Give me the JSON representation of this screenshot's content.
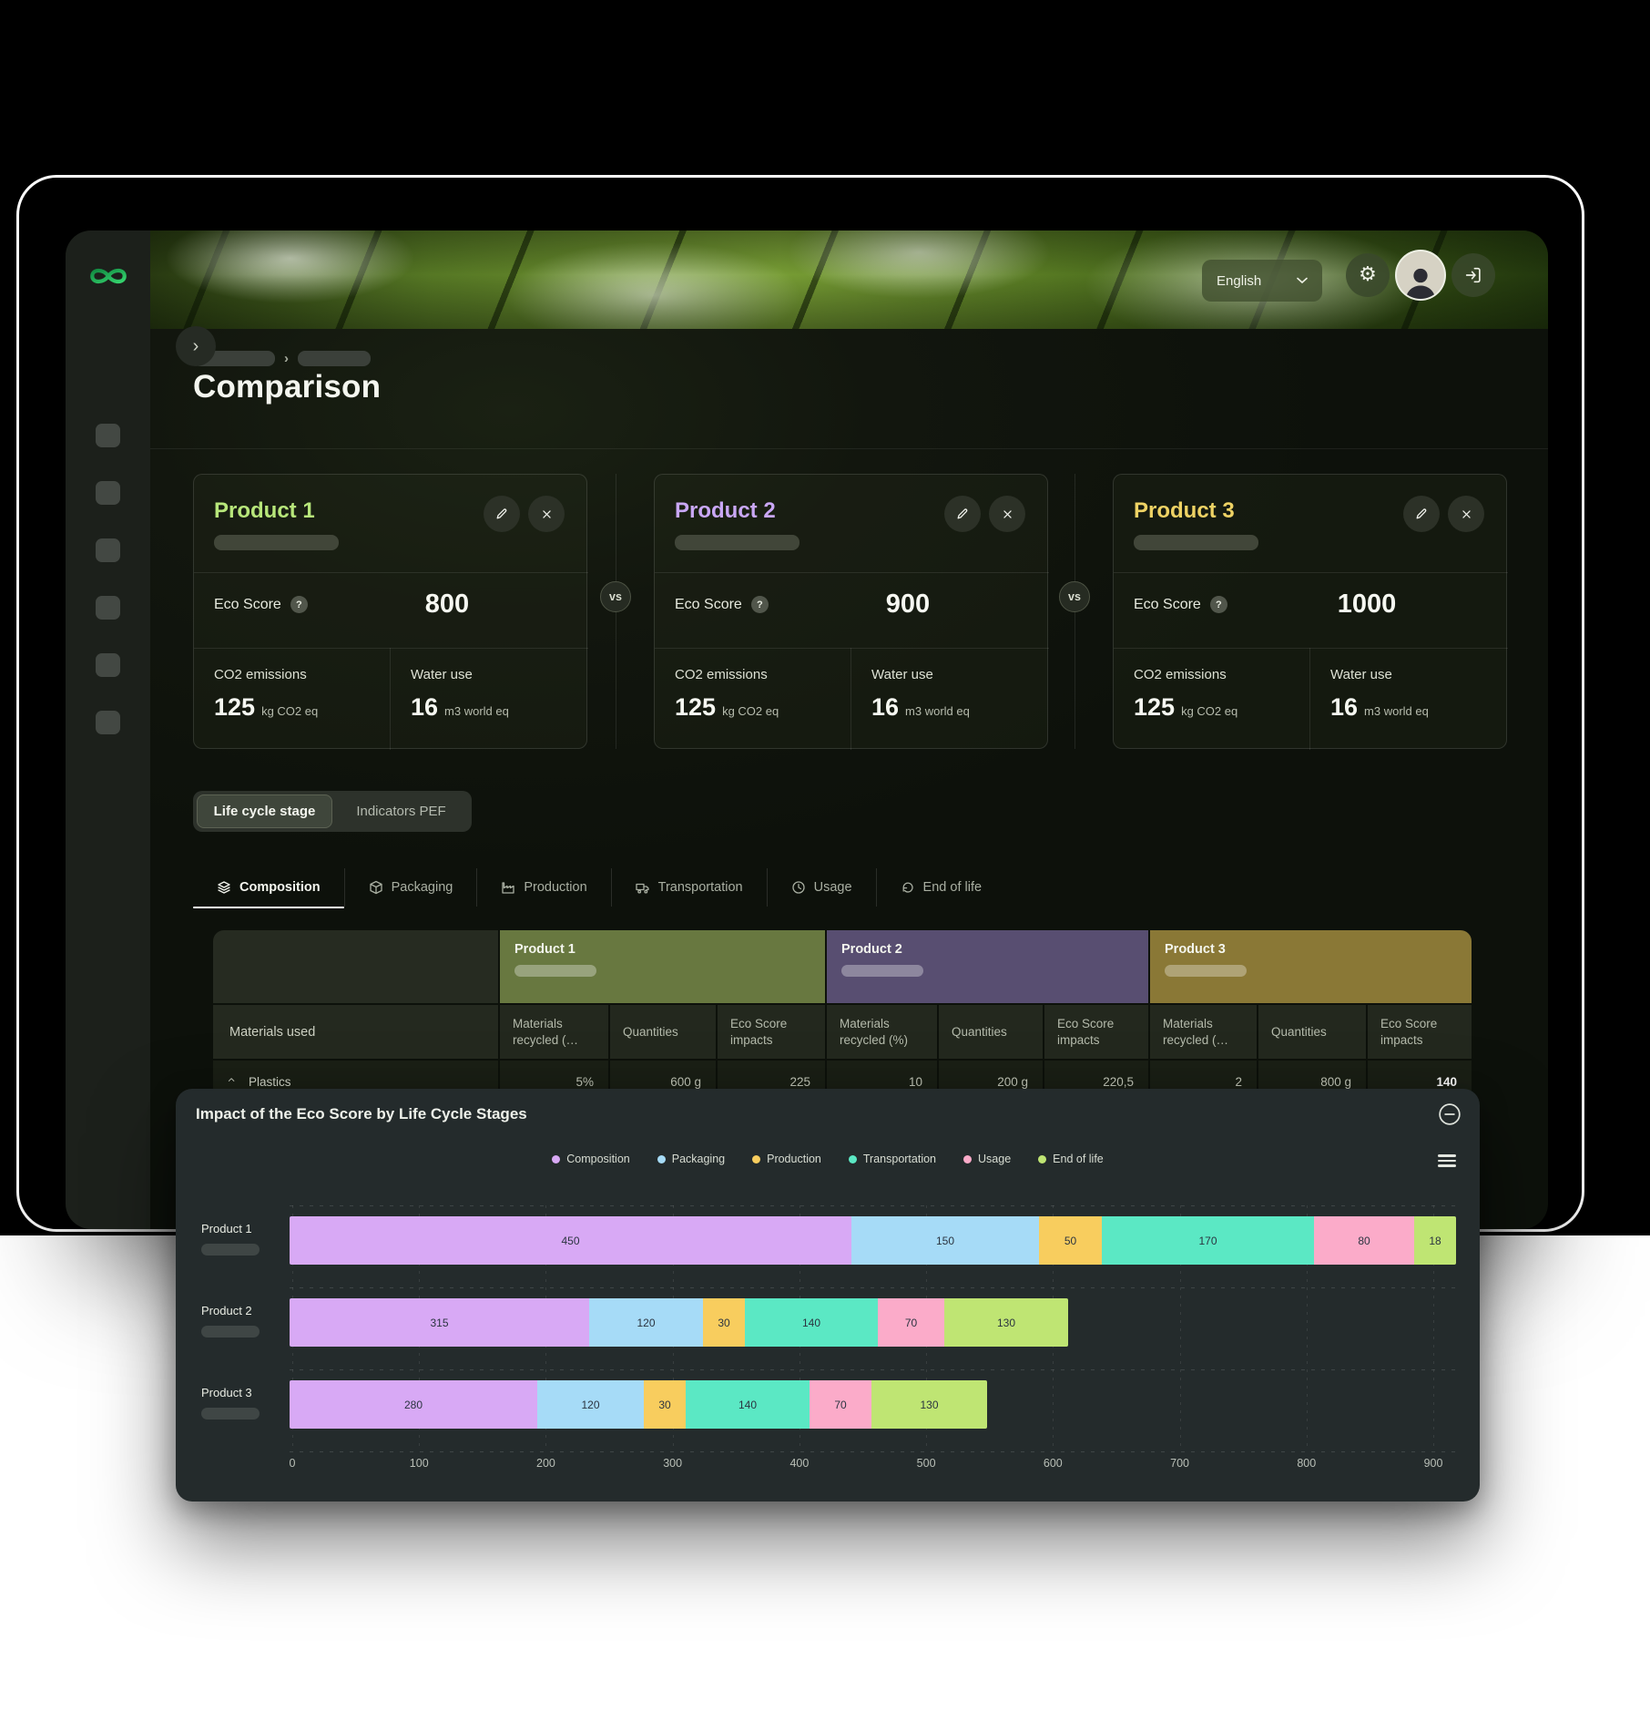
{
  "header": {
    "language_label": "English"
  },
  "page": {
    "title": "Comparison"
  },
  "labels": {
    "eco_score": "Eco Score",
    "co2": "CO2 emissions",
    "water": "Water use",
    "vs": "vs"
  },
  "products": [
    {
      "name": "Product 1",
      "accent": "#b7e67a",
      "eco_score": "800",
      "co2_value": "125",
      "co2_unit": "kg CO2 eq",
      "water_value": "16",
      "water_unit": "m3 world eq"
    },
    {
      "name": "Product 2",
      "accent": "#c9a7f5",
      "eco_score": "900",
      "co2_value": "125",
      "co2_unit": "kg CO2 eq",
      "water_value": "16",
      "water_unit": "m3 world eq"
    },
    {
      "name": "Product 3",
      "accent": "#eed264",
      "eco_score": "1000",
      "co2_value": "125",
      "co2_unit": "kg CO2 eq",
      "water_value": "16",
      "water_unit": "m3 world eq"
    }
  ],
  "view_tabs": [
    {
      "label": "Life cycle stage",
      "active": true
    },
    {
      "label": "Indicators PEF",
      "active": false
    }
  ],
  "stage_tabs": [
    {
      "label": "Composition",
      "icon": "layers-icon",
      "active": true
    },
    {
      "label": "Packaging",
      "icon": "package-icon",
      "active": false
    },
    {
      "label": "Production",
      "icon": "factory-icon",
      "active": false
    },
    {
      "label": "Transportation",
      "icon": "truck-icon",
      "active": false
    },
    {
      "label": "Usage",
      "icon": "clock-icon",
      "active": false
    },
    {
      "label": "End of life",
      "icon": "recycle-icon",
      "active": false
    }
  ],
  "table": {
    "row_header": "Materials used",
    "groups": [
      {
        "name": "Product 1",
        "color": "#687840",
        "columns": [
          "Materials recycled (…",
          "Quantities",
          "Eco Score impacts"
        ]
      },
      {
        "name": "Product 2",
        "color": "#584e71",
        "columns": [
          "Materials recycled (%)",
          "Quantities",
          "Eco Score impacts"
        ]
      },
      {
        "name": "Product 3",
        "color": "#8a7836",
        "columns": [
          "Materials recycled (…",
          "Quantities",
          "Eco Score impacts"
        ]
      }
    ],
    "rows": [
      {
        "label": "Plastics",
        "values": [
          "5%",
          "600 g",
          "225",
          "10",
          "200 g",
          "220,5",
          "2",
          "800 g",
          "140"
        ],
        "highlight_index": 8
      }
    ]
  },
  "chart_panel": {
    "title": "Impact of the Eco Score by Life Cycle Stages"
  },
  "chart_data": {
    "type": "bar",
    "orientation": "horizontal",
    "stacked": true,
    "title": "Impact of the Eco Score by Life Cycle Stages",
    "categories": [
      "Product 1",
      "Product 2",
      "Product 3"
    ],
    "series": [
      {
        "name": "Composition",
        "color": "#d8a9f5",
        "values": [
          450,
          315,
          280
        ]
      },
      {
        "name": "Packaging",
        "color": "#a6dbf7",
        "values": [
          150,
          120,
          120
        ]
      },
      {
        "name": "Production",
        "color": "#f8cd5e",
        "values": [
          50,
          30,
          30
        ]
      },
      {
        "name": "Transportation",
        "color": "#5be8c4",
        "values": [
          170,
          140,
          140
        ]
      },
      {
        "name": "Usage",
        "color": "#fbabc9",
        "values": [
          80,
          70,
          70
        ]
      },
      {
        "name": "End of life",
        "color": "#bfe573",
        "values": [
          18,
          130,
          130
        ]
      }
    ],
    "xlim": [
      0,
      900
    ],
    "xticks": [
      0,
      100,
      200,
      300,
      400,
      500,
      600,
      700,
      800,
      900
    ],
    "legend_position": "top-center",
    "grid": true
  }
}
